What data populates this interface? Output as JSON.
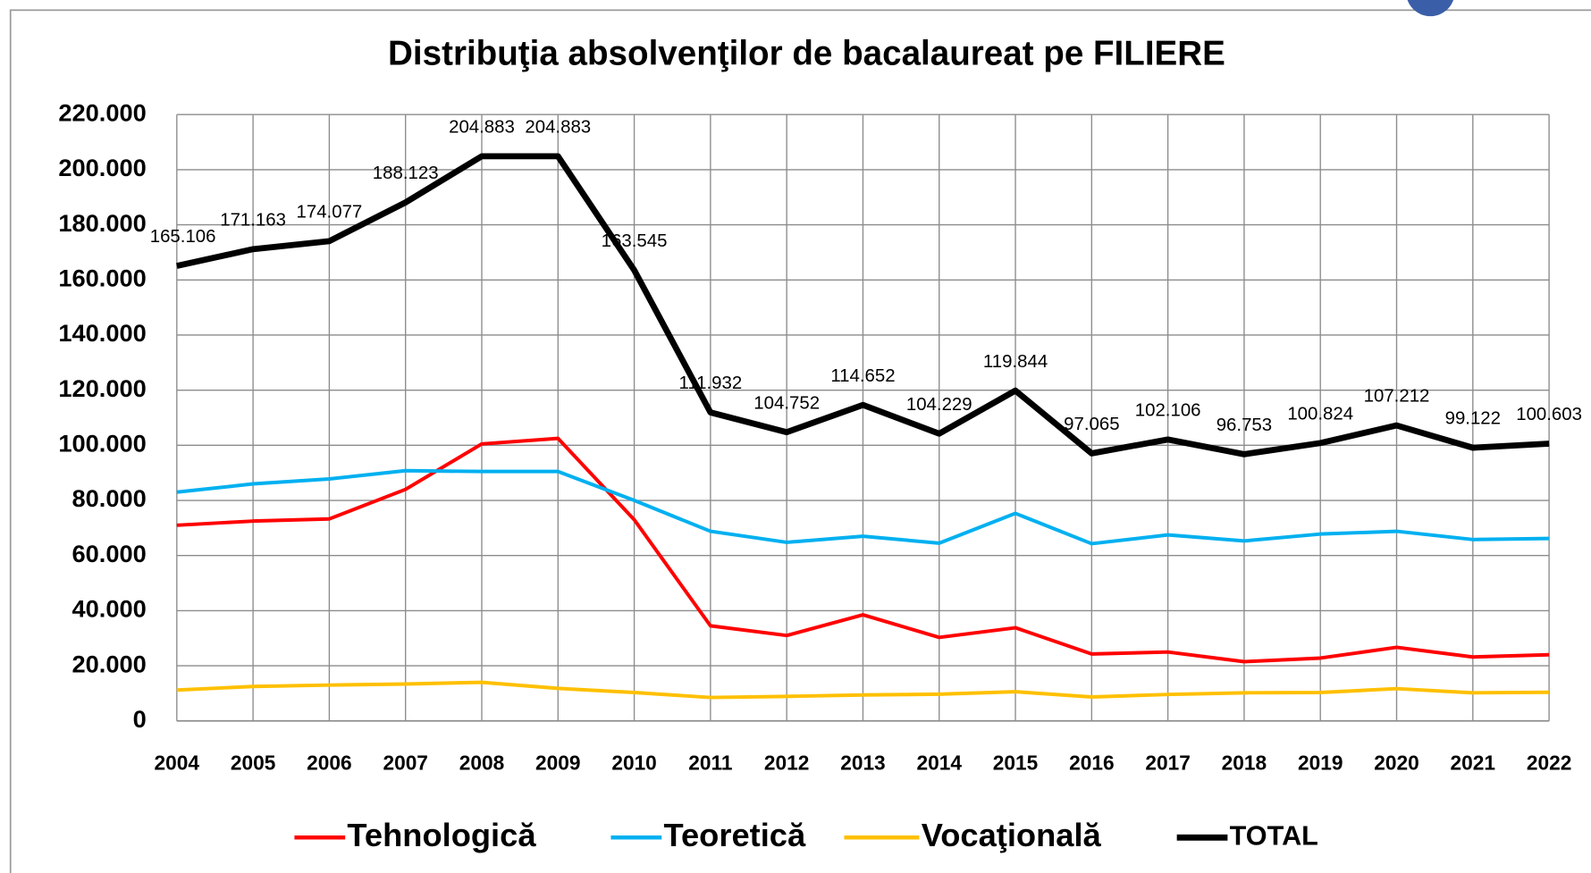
{
  "chart_data": {
    "type": "line",
    "title": "Distribuţia absolvenţilor de bacalaureat pe FILIERE",
    "categories": [
      "2004",
      "2005",
      "2006",
      "2007",
      "2008",
      "2009",
      "2010",
      "2011",
      "2012",
      "2013",
      "2014",
      "2015",
      "2016",
      "2017",
      "2018",
      "2019",
      "2020",
      "2021",
      "2022"
    ],
    "series": [
      {
        "name": "Tehnologică",
        "color": "#ff0000",
        "values": [
          71000,
          72500,
          73300,
          84000,
          100500,
          102500,
          73000,
          34500,
          31000,
          38500,
          30300,
          33800,
          24300,
          25000,
          21500,
          22800,
          26700,
          23200,
          24000
        ]
      },
      {
        "name": "Teoretică",
        "color": "#00b0f0",
        "values": [
          83000,
          86000,
          87800,
          90800,
          90500,
          90500,
          80000,
          68800,
          64800,
          67000,
          64500,
          75300,
          64300,
          67500,
          65300,
          67800,
          68800,
          65800,
          66200
        ]
      },
      {
        "name": "Vocaţională",
        "color": "#ffc000",
        "values": [
          11200,
          12500,
          13000,
          13400,
          14000,
          11800,
          10300,
          8500,
          8900,
          9400,
          9700,
          10600,
          8700,
          9600,
          10200,
          10300,
          11700,
          10200,
          10400
        ]
      },
      {
        "name": "TOTAL",
        "color": "#000000",
        "values": [
          165106,
          171163,
          174077,
          188123,
          204883,
          204883,
          163545,
          111932,
          104752,
          114652,
          104229,
          119844,
          97065,
          102106,
          96753,
          100824,
          107212,
          99122,
          100603
        ],
        "value_labels": [
          "165.106",
          "171.163",
          "174.077",
          "188.123",
          "204.883",
          "204.883",
          "163.545",
          "111.932",
          "104.752",
          "114.652",
          "104.229",
          "119.844",
          "97.065",
          "102.106",
          "96.753",
          "100.824",
          "107.212",
          "99.122",
          "100.603"
        ]
      }
    ],
    "ylim": [
      0,
      220000
    ],
    "yticks": [
      0,
      {
        "value": 20000,
        "label": "20.000"
      },
      {
        "value": 40000,
        "label": "40.000"
      },
      {
        "value": 60000,
        "label": "60.000"
      },
      {
        "value": 80000,
        "label": "80.000"
      },
      {
        "value": 100000,
        "label": "100.000"
      },
      {
        "value": 120000,
        "label": "120.000"
      },
      {
        "value": 140000,
        "label": "140.000"
      },
      {
        "value": 160000,
        "label": "160.000"
      },
      {
        "value": 180000,
        "label": "180.000"
      },
      {
        "value": 200000,
        "label": "200.000"
      },
      {
        "value": 220000,
        "label": "220.000"
      }
    ],
    "grid": true,
    "legend": "bottom"
  }
}
